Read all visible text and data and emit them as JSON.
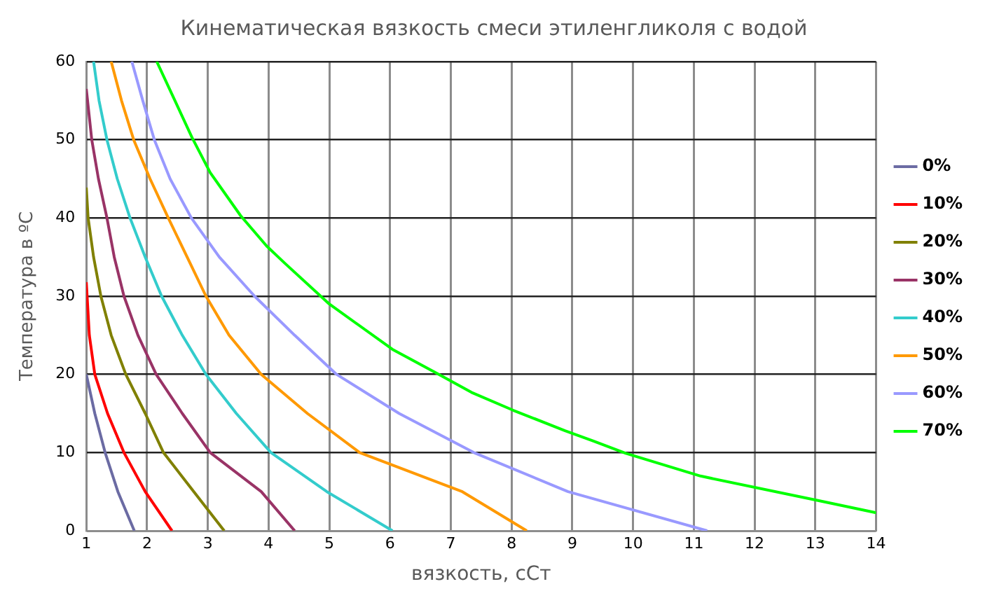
{
  "chart_data": {
    "type": "line",
    "title": "Кинематическая вязкость смеси этиленгликоля с водой",
    "xlabel": "вязкость, сСт",
    "ylabel": "Температура в ºC",
    "xlim": [
      1,
      14
    ],
    "xticks": [
      1,
      2,
      3,
      4,
      5,
      6,
      7,
      8,
      9,
      10,
      11,
      12,
      13,
      14
    ],
    "ylim": [
      0,
      60
    ],
    "yticks": [
      0,
      10,
      20,
      30,
      40,
      50,
      60
    ],
    "grid": true,
    "legend": "right",
    "marker": "none",
    "line_style": "solid",
    "series": [
      {
        "name": "0%",
        "color": "#6b6ba3",
        "x": [
          1.79,
          1.52,
          1.31,
          1.14,
          1.0
        ],
        "values": [
          0,
          5,
          10,
          15,
          20
        ]
      },
      {
        "name": "10%",
        "color": "#ff0000",
        "x": [
          2.41,
          1.97,
          1.62,
          1.35,
          1.14,
          1.05,
          1.0
        ],
        "values": [
          0,
          5,
          10,
          15,
          20,
          25,
          31.8
        ]
      },
      {
        "name": "20%",
        "color": "#808000",
        "x": [
          3.27,
          2.77,
          2.27,
          1.97,
          1.65,
          1.41,
          1.24,
          1.12,
          1.03,
          1.0
        ],
        "values": [
          0,
          5,
          10,
          15,
          20,
          25,
          30,
          35,
          40,
          43.9
        ]
      },
      {
        "name": "30%",
        "color": "#993366",
        "x": [
          4.43,
          3.88,
          3.04,
          2.58,
          2.15,
          1.85,
          1.62,
          1.46,
          1.34,
          1.2,
          1.09,
          1.0
        ],
        "values": [
          0,
          5,
          10,
          15,
          20,
          25,
          30,
          35,
          40,
          45,
          50,
          56.5
        ]
      },
      {
        "name": "40%",
        "color": "#33cccc",
        "x": [
          6.04,
          4.96,
          4.04,
          3.47,
          2.97,
          2.58,
          2.24,
          1.97,
          1.72,
          1.51,
          1.34,
          1.21,
          1.12
        ],
        "values": [
          0,
          5,
          10,
          15,
          20,
          25,
          30,
          35,
          40,
          45,
          50,
          55,
          60
        ]
      },
      {
        "name": "50%",
        "color": "#ff9900",
        "x": [
          8.25,
          7.19,
          5.5,
          4.64,
          3.88,
          3.35,
          2.97,
          2.66,
          2.35,
          2.05,
          1.78,
          1.58,
          1.41
        ],
        "values": [
          0,
          5,
          10,
          15,
          20,
          25,
          30,
          35,
          40,
          45,
          50,
          55,
          60
        ]
      },
      {
        "name": "60%",
        "color": "#9999ff",
        "x": [
          11.22,
          8.93,
          7.38,
          6.15,
          5.12,
          4.43,
          3.77,
          3.19,
          2.73,
          2.38,
          2.12,
          1.93,
          1.75
        ],
        "values": [
          0,
          5,
          10,
          15,
          20,
          25,
          30,
          35,
          40,
          45,
          50,
          55,
          60
        ]
      },
      {
        "name": "70%",
        "color": "#00ff00",
        "x": [
          14.0,
          13.03,
          11.11,
          9.88,
          9.34,
          8.88,
          8.03,
          7.34,
          6.73,
          6.04,
          5.0,
          4.27,
          3.97,
          3.54,
          3.04,
          2.74,
          2.16
        ],
        "values": [
          2.3,
          3.9,
          7.0,
          9.9,
          11.5,
          12.8,
          15.4,
          17.7,
          20.3,
          23.2,
          29.0,
          34.2,
          36.4,
          40.3,
          45.8,
          50.3,
          60
        ]
      }
    ]
  }
}
